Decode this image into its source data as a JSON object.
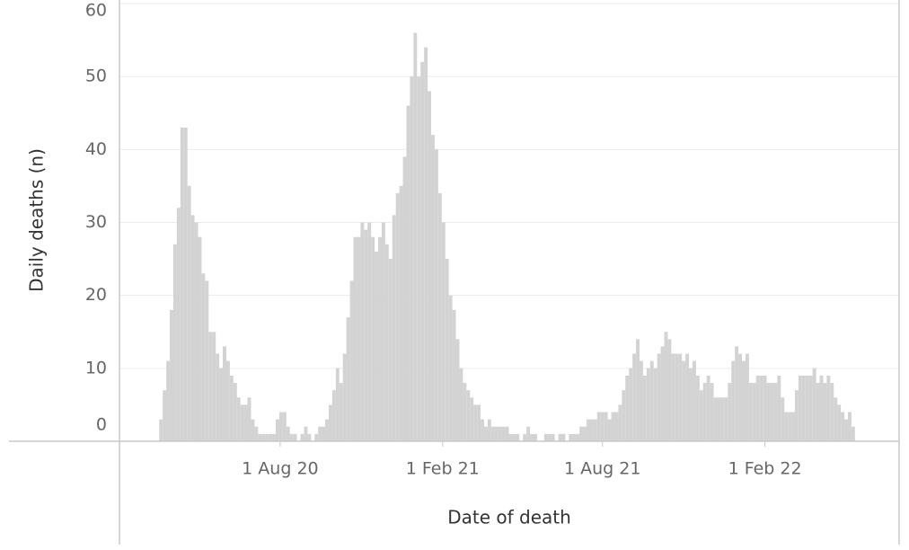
{
  "chart_data": {
    "type": "bar",
    "x_label": "Date of death",
    "y_label": "Daily deaths (n)",
    "color": "#d3d3d3",
    "grid": true,
    "bar_days": 4,
    "xlim": [
      "2020-02-01",
      "2022-07-03"
    ],
    "xticks": [
      {
        "value": "2020-08-01",
        "label": "1 Aug 20"
      },
      {
        "value": "2021-02-01",
        "label": "1 Feb 21"
      },
      {
        "value": "2021-08-01",
        "label": "1 Aug 21"
      },
      {
        "value": "2022-02-01",
        "label": "1 Feb 22"
      }
    ],
    "ylim": [
      0,
      60
    ],
    "yticks": [
      0,
      10,
      20,
      30,
      40,
      50,
      60
    ],
    "x": [
      "2020-03-17",
      "2020-03-21",
      "2020-03-25",
      "2020-03-29",
      "2020-04-02",
      "2020-04-06",
      "2020-04-10",
      "2020-04-14",
      "2020-04-18",
      "2020-04-22",
      "2020-04-26",
      "2020-04-30",
      "2020-05-04",
      "2020-05-08",
      "2020-05-12",
      "2020-05-16",
      "2020-05-20",
      "2020-05-24",
      "2020-05-28",
      "2020-06-01",
      "2020-06-05",
      "2020-06-09",
      "2020-06-13",
      "2020-06-17",
      "2020-06-21",
      "2020-06-25",
      "2020-06-29",
      "2020-07-03",
      "2020-07-07",
      "2020-07-11",
      "2020-07-15",
      "2020-07-19",
      "2020-07-23",
      "2020-07-27",
      "2020-07-31",
      "2020-08-04",
      "2020-08-08",
      "2020-08-12",
      "2020-08-16",
      "2020-08-20",
      "2020-08-24",
      "2020-08-28",
      "2020-09-01",
      "2020-09-05",
      "2020-09-09",
      "2020-09-13",
      "2020-09-17",
      "2020-09-21",
      "2020-09-25",
      "2020-09-29",
      "2020-10-03",
      "2020-10-07",
      "2020-10-11",
      "2020-10-15",
      "2020-10-19",
      "2020-10-23",
      "2020-10-27",
      "2020-10-31",
      "2020-11-04",
      "2020-11-08",
      "2020-11-12",
      "2020-11-16",
      "2020-11-20",
      "2020-11-24",
      "2020-11-28",
      "2020-12-02",
      "2020-12-06",
      "2020-12-10",
      "2020-12-14",
      "2020-12-18",
      "2020-12-22",
      "2020-12-26",
      "2020-12-30",
      "2021-01-03",
      "2021-01-07",
      "2021-01-11",
      "2021-01-15",
      "2021-01-19",
      "2021-01-23",
      "2021-01-27",
      "2021-01-31",
      "2021-02-04",
      "2021-02-08",
      "2021-02-12",
      "2021-02-16",
      "2021-02-20",
      "2021-02-24",
      "2021-02-28",
      "2021-03-04",
      "2021-03-08",
      "2021-03-12",
      "2021-03-16",
      "2021-03-20",
      "2021-03-24",
      "2021-03-28",
      "2021-04-01",
      "2021-04-05",
      "2021-04-09",
      "2021-04-13",
      "2021-04-17",
      "2021-04-21",
      "2021-04-25",
      "2021-04-29",
      "2021-05-03",
      "2021-05-07",
      "2021-05-11",
      "2021-05-15",
      "2021-05-19",
      "2021-05-23",
      "2021-05-27",
      "2021-05-31",
      "2021-06-04",
      "2021-06-08",
      "2021-06-12",
      "2021-06-16",
      "2021-06-20",
      "2021-06-24",
      "2021-06-28",
      "2021-07-02",
      "2021-07-06",
      "2021-07-10",
      "2021-07-14",
      "2021-07-18",
      "2021-07-22",
      "2021-07-26",
      "2021-07-30",
      "2021-08-03",
      "2021-08-07",
      "2021-08-11",
      "2021-08-15",
      "2021-08-19",
      "2021-08-23",
      "2021-08-27",
      "2021-08-31",
      "2021-09-04",
      "2021-09-08",
      "2021-09-12",
      "2021-09-16",
      "2021-09-20",
      "2021-09-24",
      "2021-09-28",
      "2021-10-02",
      "2021-10-06",
      "2021-10-10",
      "2021-10-14",
      "2021-10-18",
      "2021-10-22",
      "2021-10-26",
      "2021-10-30",
      "2021-11-03",
      "2021-11-07",
      "2021-11-11",
      "2021-11-15",
      "2021-11-19",
      "2021-11-23",
      "2021-11-27",
      "2021-12-01",
      "2021-12-05",
      "2021-12-09",
      "2021-12-13",
      "2021-12-17",
      "2021-12-21",
      "2021-12-25",
      "2021-12-29",
      "2022-01-02",
      "2022-01-06",
      "2022-01-10",
      "2022-01-14",
      "2022-01-18",
      "2022-01-22",
      "2022-01-26",
      "2022-01-30",
      "2022-02-03",
      "2022-02-07",
      "2022-02-11",
      "2022-02-15",
      "2022-02-19",
      "2022-02-23",
      "2022-02-27",
      "2022-03-03",
      "2022-03-07",
      "2022-03-11",
      "2022-03-15",
      "2022-03-19",
      "2022-03-23",
      "2022-03-27",
      "2022-03-31",
      "2022-04-04",
      "2022-04-08",
      "2022-04-12",
      "2022-04-16",
      "2022-04-20",
      "2022-04-24",
      "2022-04-28",
      "2022-05-02",
      "2022-05-06",
      "2022-05-10"
    ],
    "values": [
      3,
      7,
      11,
      18,
      27,
      32,
      43,
      43,
      35,
      31,
      30,
      28,
      23,
      22,
      15,
      15,
      12,
      10,
      13,
      11,
      9,
      8,
      6,
      5,
      5,
      6,
      3,
      2,
      1,
      1,
      1,
      1,
      1,
      3,
      4,
      4,
      2,
      1,
      1,
      0,
      1,
      2,
      1,
      0,
      1,
      2,
      2,
      3,
      5,
      7,
      10,
      8,
      12,
      17,
      22,
      28,
      28,
      30,
      29,
      30,
      28,
      26,
      28,
      30,
      27,
      25,
      31,
      34,
      35,
      39,
      46,
      50,
      56,
      50,
      52,
      54,
      48,
      42,
      40,
      34,
      30,
      25,
      20,
      18,
      14,
      10,
      8,
      7,
      6,
      5,
      5,
      3,
      2,
      3,
      2,
      2,
      2,
      2,
      2,
      1,
      1,
      1,
      0,
      1,
      2,
      1,
      1,
      0,
      0,
      1,
      1,
      1,
      0,
      1,
      1,
      0,
      1,
      1,
      1,
      2,
      2,
      3,
      3,
      3,
      4,
      4,
      4,
      3,
      4,
      4,
      5,
      7,
      9,
      10,
      12,
      14,
      11,
      9,
      10,
      11,
      10,
      12,
      13,
      15,
      14,
      12,
      12,
      12,
      11,
      12,
      10,
      11,
      9,
      7,
      8,
      9,
      8,
      6,
      6,
      6,
      6,
      8,
      11,
      13,
      12,
      11,
      12,
      8,
      8,
      9,
      9,
      9,
      8,
      8,
      8,
      9,
      6,
      4,
      4,
      4,
      7,
      9,
      9,
      9,
      9,
      10,
      8,
      9,
      8,
      9,
      8,
      6,
      5,
      4,
      3,
      4,
      2
    ]
  }
}
